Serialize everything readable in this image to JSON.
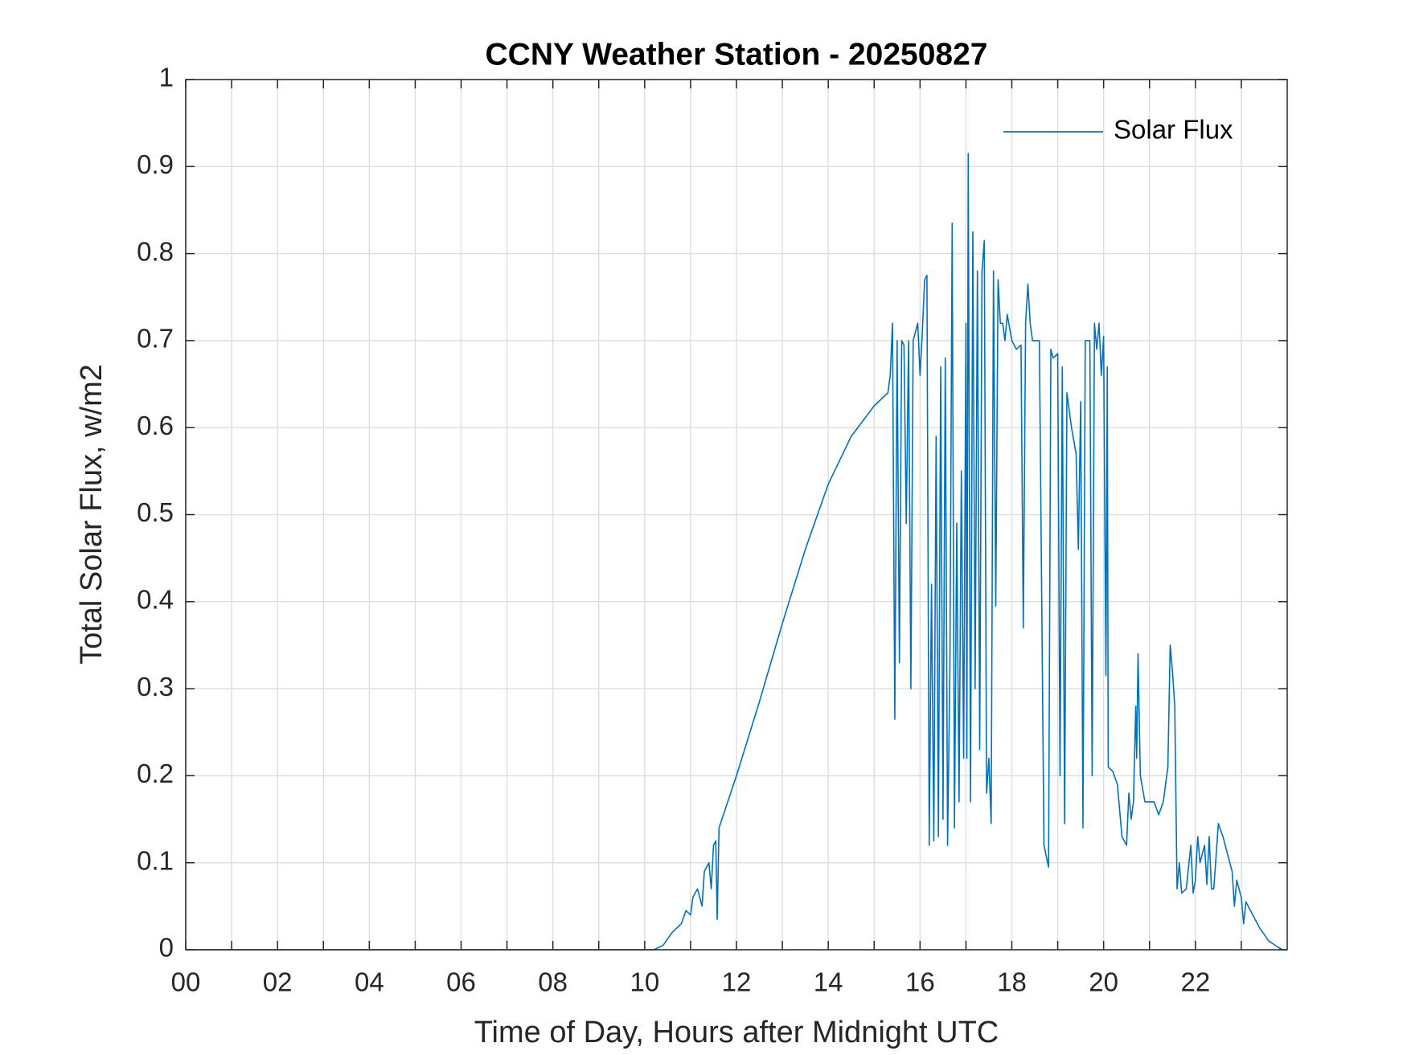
{
  "chart_data": {
    "type": "line",
    "title": "CCNY Weather Station - 20250827",
    "xlabel": "Time of Day, Hours after Midnight UTC",
    "ylabel": "Total Solar Flux, w/m2",
    "x": [
      0,
      10.2,
      10.4,
      10.6,
      10.8,
      10.9,
      11.0,
      11.05,
      11.15,
      11.25,
      11.3,
      11.4,
      11.45,
      11.5,
      11.55,
      11.58,
      11.62,
      12.0,
      12.5,
      13.0,
      13.5,
      14.0,
      14.5,
      15.0,
      15.3,
      15.35,
      15.4,
      15.45,
      15.5,
      15.55,
      15.6,
      15.65,
      15.7,
      15.75,
      15.8,
      15.85,
      15.95,
      16.0,
      16.05,
      16.1,
      16.15,
      16.2,
      16.25,
      16.3,
      16.35,
      16.4,
      16.45,
      16.5,
      16.55,
      16.6,
      16.65,
      16.7,
      16.75,
      16.8,
      16.85,
      16.9,
      16.95,
      17.0,
      17.02,
      17.05,
      17.1,
      17.15,
      17.2,
      17.25,
      17.3,
      17.35,
      17.4,
      17.45,
      17.5,
      17.55,
      17.6,
      17.65,
      17.7,
      17.75,
      17.8,
      17.85,
      17.9,
      18.0,
      18.1,
      18.2,
      18.25,
      18.3,
      18.35,
      18.4,
      18.45,
      18.6,
      18.7,
      18.8,
      18.85,
      18.9,
      19.0,
      19.05,
      19.1,
      19.15,
      19.2,
      19.3,
      19.4,
      19.45,
      19.5,
      19.55,
      19.6,
      19.7,
      19.75,
      19.8,
      19.85,
      19.9,
      19.95,
      20.0,
      20.05,
      20.08,
      20.1,
      20.2,
      20.3,
      20.4,
      20.5,
      20.55,
      20.6,
      20.65,
      20.7,
      20.72,
      20.75,
      20.8,
      20.9,
      21.0,
      21.1,
      21.2,
      21.3,
      21.4,
      21.45,
      21.5,
      21.55,
      21.6,
      21.65,
      21.7,
      21.8,
      21.9,
      21.95,
      22.0,
      22.05,
      22.1,
      22.2,
      22.25,
      22.3,
      22.35,
      22.4,
      22.5,
      22.6,
      22.7,
      22.8,
      22.85,
      22.9,
      23.0,
      23.05,
      23.1,
      23.2,
      23.4,
      23.6,
      23.8,
      23.9
    ],
    "series": [
      {
        "name": "Solar Flux",
        "color": "#0072bd",
        "values": [
          0,
          0,
          0.005,
          0.02,
          0.03,
          0.045,
          0.04,
          0.06,
          0.07,
          0.05,
          0.09,
          0.1,
          0.07,
          0.12,
          0.125,
          0.035,
          0.14,
          0.2,
          0.285,
          0.375,
          0.46,
          0.535,
          0.59,
          0.625,
          0.64,
          0.66,
          0.72,
          0.265,
          0.7,
          0.33,
          0.7,
          0.695,
          0.49,
          0.7,
          0.3,
          0.7,
          0.72,
          0.66,
          0.71,
          0.77,
          0.775,
          0.12,
          0.42,
          0.125,
          0.59,
          0.13,
          0.67,
          0.15,
          0.68,
          0.12,
          0.32,
          0.835,
          0.14,
          0.49,
          0.17,
          0.55,
          0.22,
          0.72,
          0.22,
          0.915,
          0.17,
          0.825,
          0.3,
          0.78,
          0.23,
          0.78,
          0.815,
          0.18,
          0.22,
          0.145,
          0.78,
          0.395,
          0.77,
          0.72,
          0.72,
          0.7,
          0.73,
          0.7,
          0.69,
          0.695,
          0.37,
          0.72,
          0.765,
          0.72,
          0.7,
          0.7,
          0.12,
          0.095,
          0.69,
          0.68,
          0.685,
          0.2,
          0.67,
          0.145,
          0.64,
          0.6,
          0.57,
          0.46,
          0.63,
          0.14,
          0.7,
          0.7,
          0.2,
          0.72,
          0.69,
          0.72,
          0.66,
          0.705,
          0.315,
          0.67,
          0.21,
          0.205,
          0.19,
          0.13,
          0.12,
          0.18,
          0.15,
          0.17,
          0.28,
          0.22,
          0.34,
          0.2,
          0.17,
          0.17,
          0.17,
          0.155,
          0.17,
          0.21,
          0.35,
          0.32,
          0.28,
          0.07,
          0.1,
          0.065,
          0.07,
          0.12,
          0.065,
          0.08,
          0.13,
          0.1,
          0.12,
          0.075,
          0.13,
          0.07,
          0.07,
          0.145,
          0.13,
          0.11,
          0.09,
          0.05,
          0.08,
          0.06,
          0.03,
          0.055,
          0.045,
          0.025,
          0.01,
          0.003,
          0
        ]
      }
    ],
    "xlim": [
      0,
      24
    ],
    "xticks": [
      {
        "value": 0,
        "label": "00"
      },
      {
        "value": 2,
        "label": "02"
      },
      {
        "value": 4,
        "label": "04"
      },
      {
        "value": 6,
        "label": "06"
      },
      {
        "value": 8,
        "label": "08"
      },
      {
        "value": 10,
        "label": "10"
      },
      {
        "value": 12,
        "label": "12"
      },
      {
        "value": 14,
        "label": "14"
      },
      {
        "value": 16,
        "label": "16"
      },
      {
        "value": 18,
        "label": "18"
      },
      {
        "value": 20,
        "label": "20"
      },
      {
        "value": 22,
        "label": "22"
      }
    ],
    "xminorticks": [
      1,
      3,
      5,
      7,
      9,
      11,
      13,
      15,
      17,
      19,
      21,
      23
    ],
    "ylim": [
      0,
      1
    ],
    "yticks": [
      0,
      0.1,
      0.2,
      0.3,
      0.4,
      0.5,
      0.6,
      0.7,
      0.8,
      0.9,
      1
    ],
    "grid": true,
    "legend": "top-right"
  }
}
